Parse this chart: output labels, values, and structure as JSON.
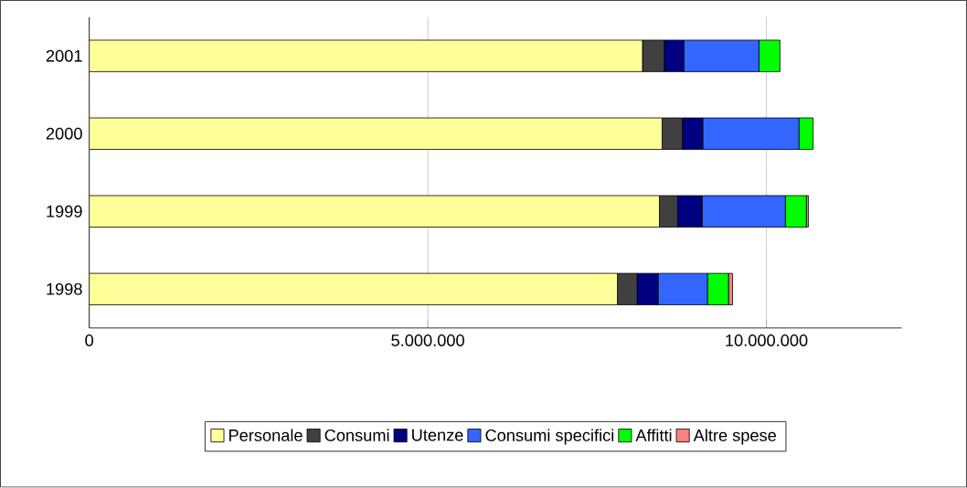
{
  "chart_data": {
    "type": "bar",
    "orientation": "horizontal",
    "stacked": true,
    "categories": [
      "2001",
      "2000",
      "1999",
      "1998"
    ],
    "series": [
      {
        "name": "Personale",
        "color": "#ffff99",
        "values": [
          8170000,
          8460000,
          8420000,
          7800000
        ]
      },
      {
        "name": "Consumi",
        "color": "#404040",
        "values": [
          320000,
          300000,
          270000,
          290000
        ]
      },
      {
        "name": "Utenze",
        "color": "#000080",
        "values": [
          290000,
          300000,
          360000,
          310000
        ]
      },
      {
        "name": "Consumi specifici",
        "color": "#3366ff",
        "values": [
          1110000,
          1420000,
          1230000,
          730000
        ]
      },
      {
        "name": "Affitti",
        "color": "#00ff00",
        "values": [
          310000,
          210000,
          310000,
          310000
        ]
      },
      {
        "name": "Altre spese",
        "color": "#ff8080",
        "values": [
          0,
          0,
          30000,
          60000
        ]
      }
    ],
    "xlim": [
      0,
      12000000
    ],
    "xticks": [
      {
        "value": 0,
        "label": "0"
      },
      {
        "value": 5000000,
        "label": "5.000.000"
      },
      {
        "value": 10000000,
        "label": "10.000.000"
      }
    ],
    "grid": "x",
    "legend": "bottom"
  }
}
